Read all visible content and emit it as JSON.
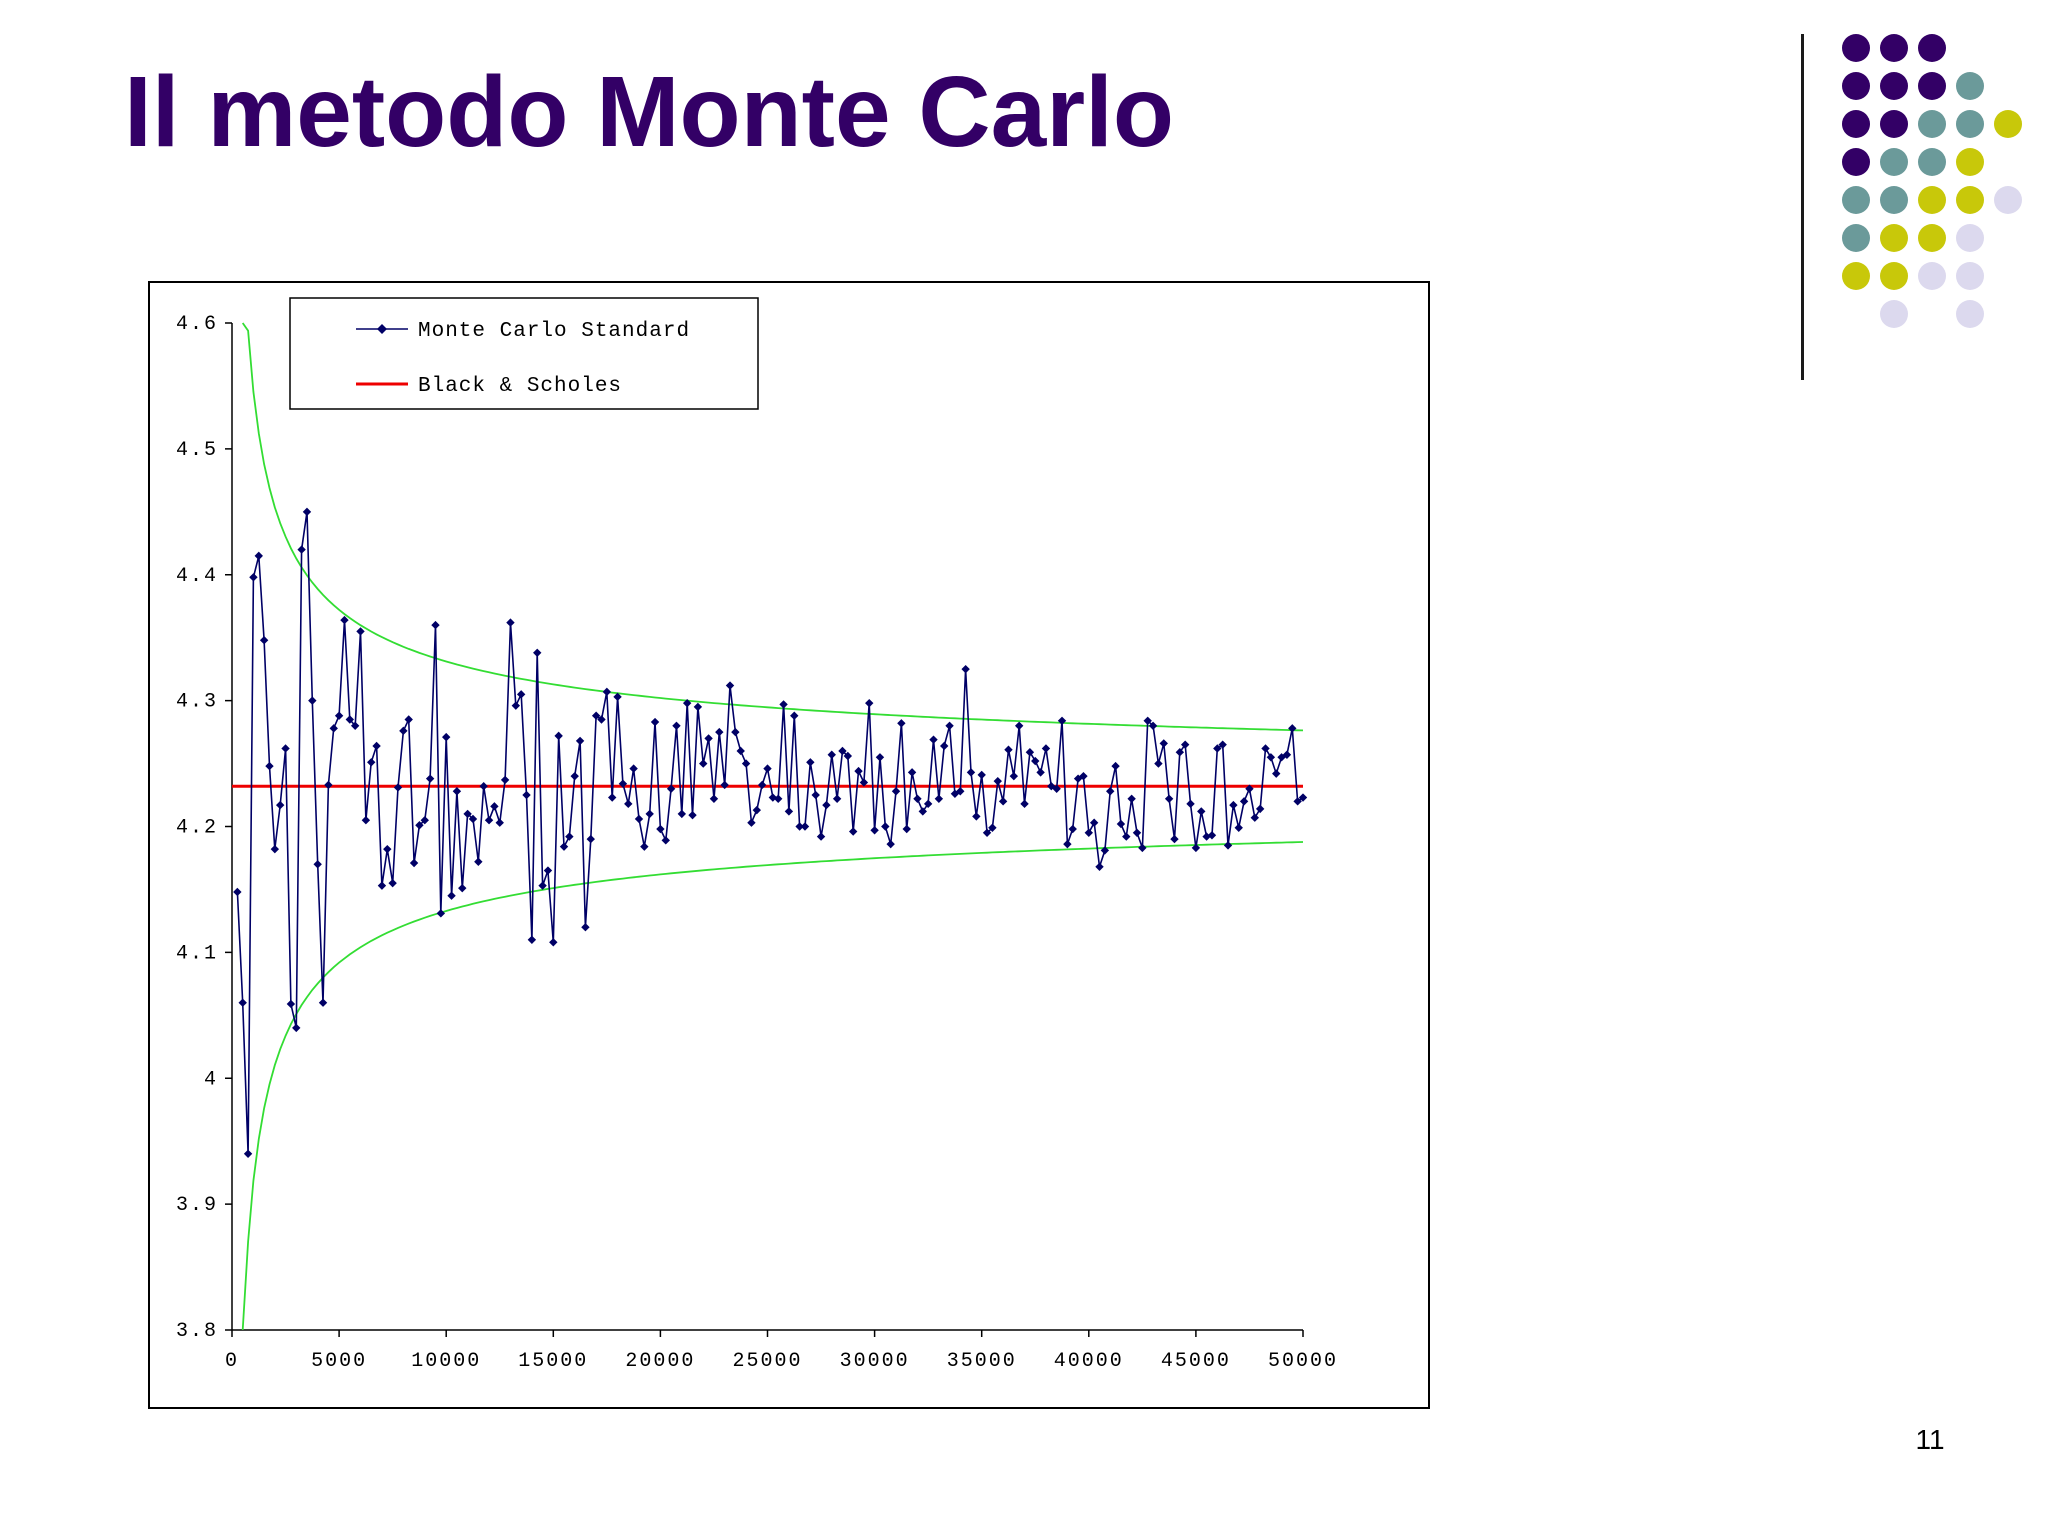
{
  "slide": {
    "title": "Il metodo Monte Carlo",
    "page_number": "11"
  },
  "decor": {
    "dot_grid": [
      [
        "purple",
        "purple",
        "purple",
        "",
        "",
        ""
      ],
      [
        "purple",
        "purple",
        "purple",
        "teal",
        "",
        ""
      ],
      [
        "purple",
        "purple",
        "teal",
        "teal",
        "yellow",
        ""
      ],
      [
        "purple",
        "teal",
        "teal",
        "yellow",
        "",
        ""
      ],
      [
        "teal",
        "teal",
        "yellow",
        "yellow",
        "lavender",
        ""
      ],
      [
        "teal",
        "yellow",
        "yellow",
        "lavender",
        "",
        ""
      ],
      [
        "yellow",
        "yellow",
        "lavender",
        "lavender",
        "",
        ""
      ],
      [
        "",
        "lavender",
        "",
        "lavender",
        "",
        ""
      ]
    ],
    "colors": {
      "purple": "#330066",
      "teal": "#6b9a9a",
      "yellow": "#c8c80a",
      "lavender": "#dcd9ee",
      "title": "#330066"
    }
  },
  "chart_data": {
    "type": "line",
    "xlim": [
      0,
      50000
    ],
    "ylim": [
      3.8,
      4.6
    ],
    "x_ticks": [
      0,
      5000,
      10000,
      15000,
      20000,
      25000,
      30000,
      35000,
      40000,
      45000,
      50000
    ],
    "x_tick_labels": [
      "0",
      "5000",
      "10000",
      "15000",
      "20000",
      "25000",
      "30000",
      "35000",
      "40000",
      "45000",
      "50000"
    ],
    "y_ticks": [
      3.8,
      3.9,
      4,
      4.1,
      4.2,
      4.3,
      4.4,
      4.5,
      4.6
    ],
    "y_tick_labels": [
      "3.8",
      "3.9",
      "4",
      "4.1",
      "4.2",
      "4.3",
      "4.4",
      "4.5",
      "4.6"
    ],
    "grid": false,
    "legend": {
      "position": "top-left",
      "entries": [
        {
          "label": "Monte Carlo Standard",
          "color": "#000066",
          "marker": "diamond"
        },
        {
          "label": "Black & Scholes",
          "color": "#ee0000",
          "marker": "none"
        }
      ]
    },
    "series": [
      {
        "name": "Monte Carlo Standard",
        "color": "#000066",
        "marker": "diamond",
        "x_start": 250,
        "x_step": 250,
        "values": [
          4.148,
          4.06,
          3.94,
          4.398,
          4.415,
          4.348,
          4.248,
          4.182,
          4.217,
          4.262,
          4.059,
          4.04,
          4.42,
          4.45,
          4.3,
          4.17,
          4.06,
          4.233,
          4.278,
          4.288,
          4.364,
          4.285,
          4.28,
          4.355,
          4.205,
          4.251,
          4.264,
          4.153,
          4.182,
          4.155,
          4.231,
          4.276,
          4.285,
          4.171,
          4.201,
          4.205,
          4.238,
          4.36,
          4.131,
          4.271,
          4.145,
          4.228,
          4.151,
          4.21,
          4.206,
          4.172,
          4.232,
          4.205,
          4.216,
          4.203,
          4.237,
          4.362,
          4.296,
          4.305,
          4.225,
          4.11,
          4.338,
          4.153,
          4.165,
          4.108,
          4.272,
          4.184,
          4.192,
          4.24,
          4.268,
          4.12,
          4.19,
          4.288,
          4.285,
          4.307,
          4.223,
          4.303,
          4.234,
          4.218,
          4.246,
          4.206,
          4.184,
          4.21,
          4.283,
          4.198,
          4.189,
          4.23,
          4.28,
          4.21,
          4.298,
          4.209,
          4.295,
          4.25,
          4.27,
          4.222,
          4.275,
          4.233,
          4.312,
          4.275,
          4.26,
          4.25,
          4.203,
          4.213,
          4.233,
          4.246,
          4.223,
          4.222,
          4.297,
          4.212,
          4.288,
          4.2,
          4.2,
          4.251,
          4.225,
          4.192,
          4.217,
          4.257,
          4.222,
          4.26,
          4.256,
          4.196,
          4.244,
          4.235,
          4.298,
          4.197,
          4.255,
          4.2,
          4.186,
          4.228,
          4.282,
          4.198,
          4.243,
          4.222,
          4.212,
          4.218,
          4.269,
          4.222,
          4.264,
          4.28,
          4.226,
          4.228,
          4.325,
          4.243,
          4.208,
          4.241,
          4.195,
          4.199,
          4.236,
          4.22,
          4.261,
          4.24,
          4.28,
          4.218,
          4.259,
          4.252,
          4.243,
          4.262,
          4.232,
          4.23,
          4.284,
          4.186,
          4.198,
          4.238,
          4.24,
          4.195,
          4.203,
          4.168,
          4.181,
          4.228,
          4.248,
          4.202,
          4.192,
          4.222,
          4.195,
          4.183,
          4.284,
          4.28,
          4.25,
          4.266,
          4.222,
          4.19,
          4.259,
          4.265,
          4.218,
          4.183,
          4.212,
          4.192,
          4.193,
          4.262,
          4.265,
          4.185,
          4.217,
          4.199,
          4.22,
          4.23,
          4.207,
          4.214,
          4.262,
          4.255,
          4.242,
          4.255,
          4.257,
          4.278,
          4.22,
          4.223
        ]
      },
      {
        "name": "Black & Scholes",
        "color": "#ee0000",
        "x": [
          0,
          50000
        ],
        "values": [
          4.232,
          4.232
        ]
      }
    ],
    "bands": {
      "color": "#33dd33",
      "center": 4.232,
      "coefficient": 9.91,
      "x_start": 500,
      "x_end": 50000,
      "x_step": 250
    }
  }
}
